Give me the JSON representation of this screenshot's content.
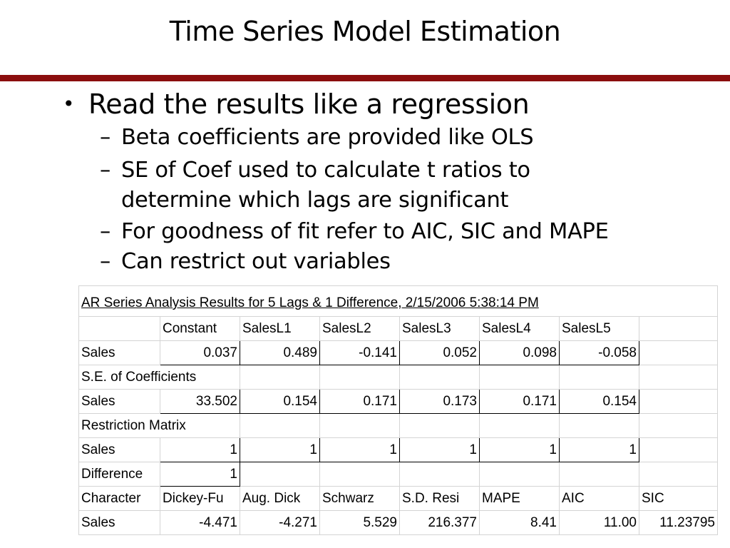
{
  "slide": {
    "title": "Time Series Model Estimation",
    "bullet": "Read the results like a regression",
    "subbullets": [
      "Beta coefficients are provided like OLS",
      "SE of Coef used to calculate t ratios to",
      "determine which lags are significant",
      "For goodness of fit refer to AIC, SIC and MAPE",
      "Can restrict out variables"
    ]
  },
  "sheet": {
    "title": "AR Series Analysis Results for 5 Lags & 1 Difference, 2/15/2006 5:38:14 PM",
    "headers": [
      "Constant",
      "SalesL1",
      "SalesL2",
      "SalesL3",
      "SalesL4",
      "SalesL5"
    ],
    "coef_row": {
      "label": "Sales",
      "values": [
        "0.037",
        "0.489",
        "-0.141",
        "0.052",
        "0.098",
        "-0.058"
      ]
    },
    "se_label": "S.E. of Coefficients",
    "se_row": {
      "label": "Sales",
      "values": [
        "33.502",
        "0.154",
        "0.171",
        "0.173",
        "0.171",
        "0.154"
      ]
    },
    "restriction_label": "Restriction Matrix",
    "restriction_row": {
      "label": "Sales",
      "values": [
        "1",
        "1",
        "1",
        "1",
        "1",
        "1"
      ]
    },
    "difference_row": {
      "label": "Difference",
      "value": "1"
    },
    "character_headers": [
      "Character",
      "Dickey-Fu",
      "Aug. Dick",
      "Schwarz",
      "S.D. Resi",
      "MAPE",
      "AIC",
      "SIC"
    ],
    "character_row": {
      "label": "Sales",
      "values": [
        "-4.471",
        "-4.271",
        "5.529",
        "216.377",
        "8.41",
        "11.00",
        "11.23795"
      ]
    }
  }
}
